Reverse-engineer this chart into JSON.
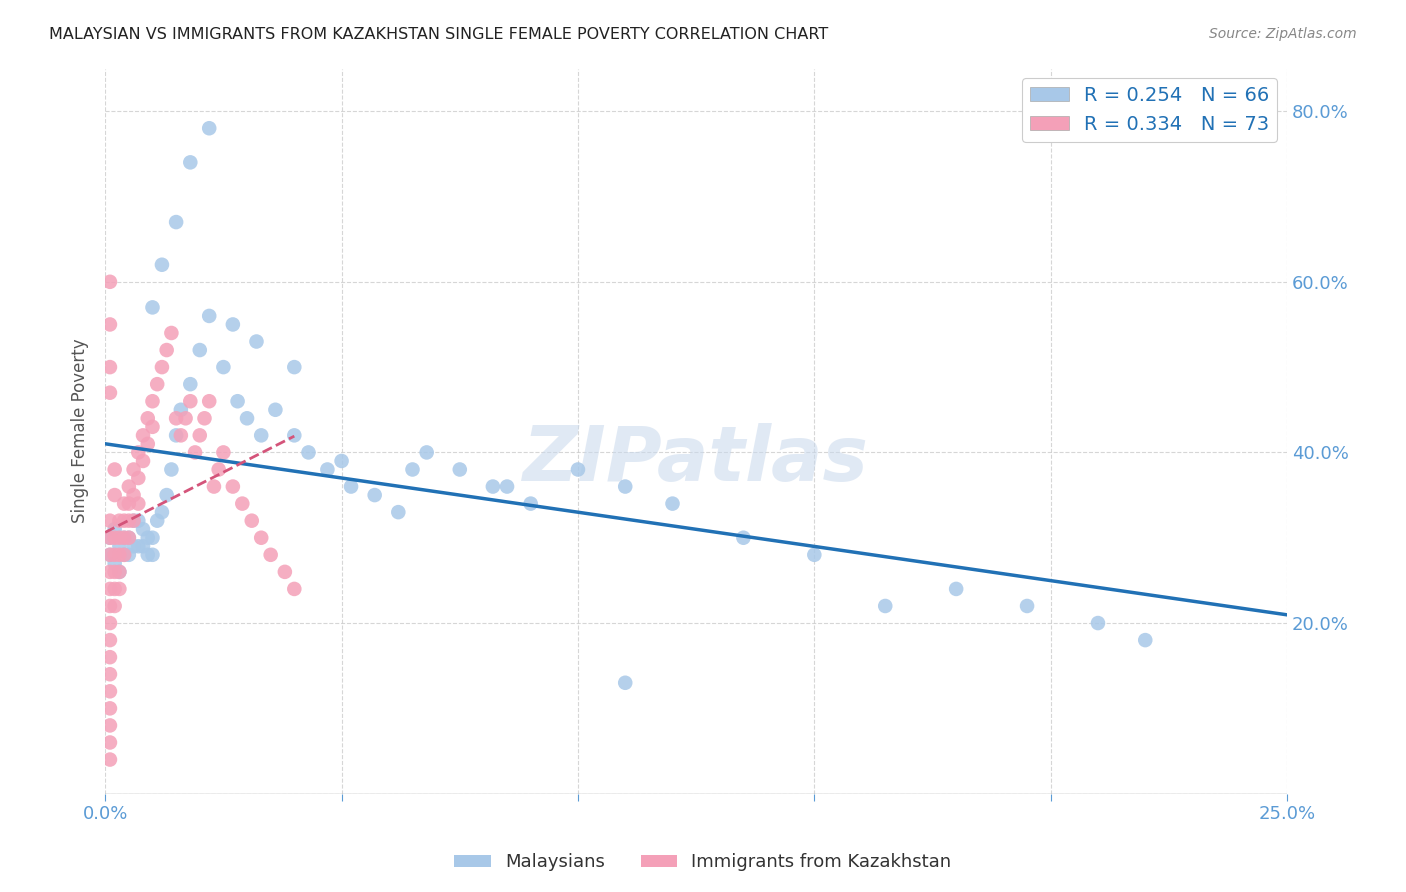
{
  "title": "MALAYSIAN VS IMMIGRANTS FROM KAZAKHSTAN SINGLE FEMALE POVERTY CORRELATION CHART",
  "source": "Source: ZipAtlas.com",
  "ylabel": "Single Female Poverty",
  "xlim": [
    0,
    0.25
  ],
  "ylim": [
    0,
    0.85
  ],
  "blue_color": "#a8c8e8",
  "pink_color": "#f4a0b8",
  "blue_line_color": "#2171b5",
  "pink_line_color": "#d4547a",
  "watermark": "ZIPatlas",
  "legend_label_malaysians": "Malaysians",
  "legend_label_immigrants": "Immigrants from Kazakhstan",
  "R_blue": 0.254,
  "N_blue": 66,
  "R_pink": 0.334,
  "N_pink": 73,
  "malaysian_x": [
    0.001,
    0.001,
    0.002,
    0.002,
    0.003,
    0.003,
    0.004,
    0.004,
    0.005,
    0.005,
    0.006,
    0.006,
    0.007,
    0.007,
    0.008,
    0.008,
    0.009,
    0.009,
    0.01,
    0.01,
    0.011,
    0.012,
    0.013,
    0.014,
    0.015,
    0.016,
    0.018,
    0.02,
    0.022,
    0.025,
    0.028,
    0.03,
    0.033,
    0.036,
    0.04,
    0.043,
    0.047,
    0.052,
    0.057,
    0.062,
    0.068,
    0.075,
    0.082,
    0.09,
    0.1,
    0.11,
    0.12,
    0.135,
    0.15,
    0.165,
    0.18,
    0.195,
    0.21,
    0.22,
    0.01,
    0.012,
    0.015,
    0.018,
    0.022,
    0.027,
    0.032,
    0.04,
    0.05,
    0.065,
    0.085,
    0.11
  ],
  "malaysian_y": [
    0.3,
    0.28,
    0.31,
    0.27,
    0.29,
    0.26,
    0.3,
    0.28,
    0.3,
    0.28,
    0.32,
    0.29,
    0.32,
    0.29,
    0.31,
    0.29,
    0.3,
    0.28,
    0.3,
    0.28,
    0.32,
    0.33,
    0.35,
    0.38,
    0.42,
    0.45,
    0.48,
    0.52,
    0.56,
    0.5,
    0.46,
    0.44,
    0.42,
    0.45,
    0.42,
    0.4,
    0.38,
    0.36,
    0.35,
    0.33,
    0.4,
    0.38,
    0.36,
    0.34,
    0.38,
    0.36,
    0.34,
    0.3,
    0.28,
    0.22,
    0.24,
    0.22,
    0.2,
    0.18,
    0.57,
    0.62,
    0.67,
    0.74,
    0.78,
    0.55,
    0.53,
    0.5,
    0.39,
    0.38,
    0.36,
    0.13
  ],
  "immigrant_x": [
    0.001,
    0.001,
    0.001,
    0.001,
    0.001,
    0.001,
    0.001,
    0.001,
    0.001,
    0.001,
    0.001,
    0.001,
    0.002,
    0.002,
    0.002,
    0.002,
    0.002,
    0.002,
    0.002,
    0.003,
    0.003,
    0.003,
    0.003,
    0.003,
    0.004,
    0.004,
    0.004,
    0.004,
    0.005,
    0.005,
    0.005,
    0.005,
    0.006,
    0.006,
    0.006,
    0.007,
    0.007,
    0.007,
    0.008,
    0.008,
    0.009,
    0.009,
    0.01,
    0.01,
    0.011,
    0.012,
    0.013,
    0.014,
    0.015,
    0.016,
    0.017,
    0.018,
    0.019,
    0.02,
    0.021,
    0.022,
    0.023,
    0.024,
    0.025,
    0.027,
    0.029,
    0.031,
    0.033,
    0.035,
    0.038,
    0.04,
    0.001,
    0.001,
    0.001,
    0.001,
    0.001,
    0.001,
    0.001
  ],
  "immigrant_y": [
    0.28,
    0.3,
    0.32,
    0.26,
    0.24,
    0.22,
    0.2,
    0.18,
    0.16,
    0.14,
    0.12,
    0.1,
    0.3,
    0.28,
    0.35,
    0.38,
    0.26,
    0.24,
    0.22,
    0.32,
    0.3,
    0.28,
    0.26,
    0.24,
    0.34,
    0.32,
    0.3,
    0.28,
    0.36,
    0.34,
    0.32,
    0.3,
    0.38,
    0.35,
    0.32,
    0.4,
    0.37,
    0.34,
    0.42,
    0.39,
    0.44,
    0.41,
    0.46,
    0.43,
    0.48,
    0.5,
    0.52,
    0.54,
    0.44,
    0.42,
    0.44,
    0.46,
    0.4,
    0.42,
    0.44,
    0.46,
    0.36,
    0.38,
    0.4,
    0.36,
    0.34,
    0.32,
    0.3,
    0.28,
    0.26,
    0.24,
    0.6,
    0.55,
    0.5,
    0.47,
    0.08,
    0.06,
    0.04
  ]
}
